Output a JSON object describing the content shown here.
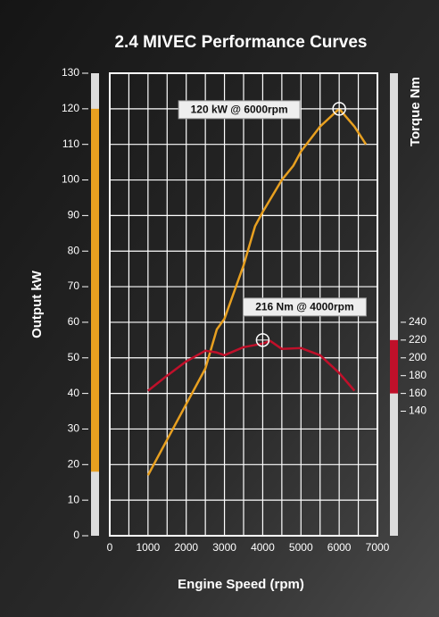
{
  "chart_data": {
    "type": "line",
    "title": "2.4 MIVEC Performance Curves",
    "x_label": "Engine Speed (rpm)",
    "y_label": "Output kW",
    "y2_label": "Torque Nm",
    "xlim": [
      0,
      7000
    ],
    "xticks": [
      0,
      1000,
      2000,
      3000,
      4000,
      5000,
      6000,
      7000
    ],
    "ylim": [
      0,
      130
    ],
    "yticks": [
      0,
      10,
      20,
      30,
      40,
      50,
      60,
      70,
      80,
      90,
      100,
      110,
      120,
      130
    ],
    "y2lim": [
      0,
      520
    ],
    "y2ticks": [
      140,
      160,
      180,
      200,
      220,
      240
    ],
    "grid": true,
    "y_band": [
      18,
      120
    ],
    "y_band_color": "#e8a020",
    "y2_band": [
      160,
      220
    ],
    "y2_band_color": "#c0102a",
    "series": [
      {
        "name": "Output",
        "color": "#e8a020",
        "x": [
          1000,
          1500,
          2000,
          2500,
          2800,
          3000,
          3500,
          3800,
          4000,
          4500,
          4800,
          5000,
          5500,
          6000,
          6400,
          6700
        ],
        "values": [
          17,
          27,
          37,
          47,
          58,
          61,
          76,
          87,
          91,
          100,
          104,
          108,
          115,
          120,
          115,
          110
        ]
      },
      {
        "name": "Torque",
        "color": "#c0102a",
        "axis": "y2",
        "x": [
          1000,
          1500,
          2000,
          2500,
          2800,
          3000,
          3500,
          4000,
          4200,
          4500,
          5000,
          5500,
          6000,
          6400
        ],
        "values": [
          163,
          180,
          196,
          208,
          206,
          203,
          212,
          216,
          219,
          210,
          211,
          203,
          183,
          163
        ]
      }
    ],
    "annotations": [
      {
        "text": "120 kW @ 6000rpm",
        "x": 6000,
        "y": 120
      },
      {
        "text": "216 Nm @ 4000rpm",
        "x": 4000,
        "y": 55
      }
    ]
  }
}
